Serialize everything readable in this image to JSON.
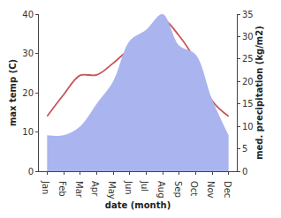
{
  "chart_data": {
    "type": "line",
    "xlabel": "date (month)",
    "ylabel": "max temp (C)",
    "y2label": "med. precipitation (kg/m2)",
    "categories": [
      "Jan",
      "Feb",
      "Mar",
      "Apr",
      "May",
      "Jun",
      "Jul",
      "Aug",
      "Sep",
      "Oct",
      "Nov",
      "Dec"
    ],
    "series": [
      {
        "type": "area",
        "axis": "y2",
        "color": "#aab4ef",
        "values": [
          8,
          8,
          10,
          15,
          20,
          29,
          31.5,
          35,
          28,
          26,
          16,
          8
        ]
      },
      {
        "type": "line",
        "axis": "y",
        "color": "#c8545a",
        "values": [
          14,
          19.5,
          24.4,
          24.5,
          27.5,
          31,
          33,
          38.5,
          34.5,
          28,
          18,
          14
        ]
      }
    ],
    "ylim": [
      0,
      40
    ],
    "yticks": [
      0,
      10,
      20,
      30,
      40
    ],
    "y2lim": [
      0,
      35
    ],
    "y2ticks": [
      0,
      5,
      10,
      15,
      20,
      25,
      30,
      35
    ],
    "grid": false
  }
}
